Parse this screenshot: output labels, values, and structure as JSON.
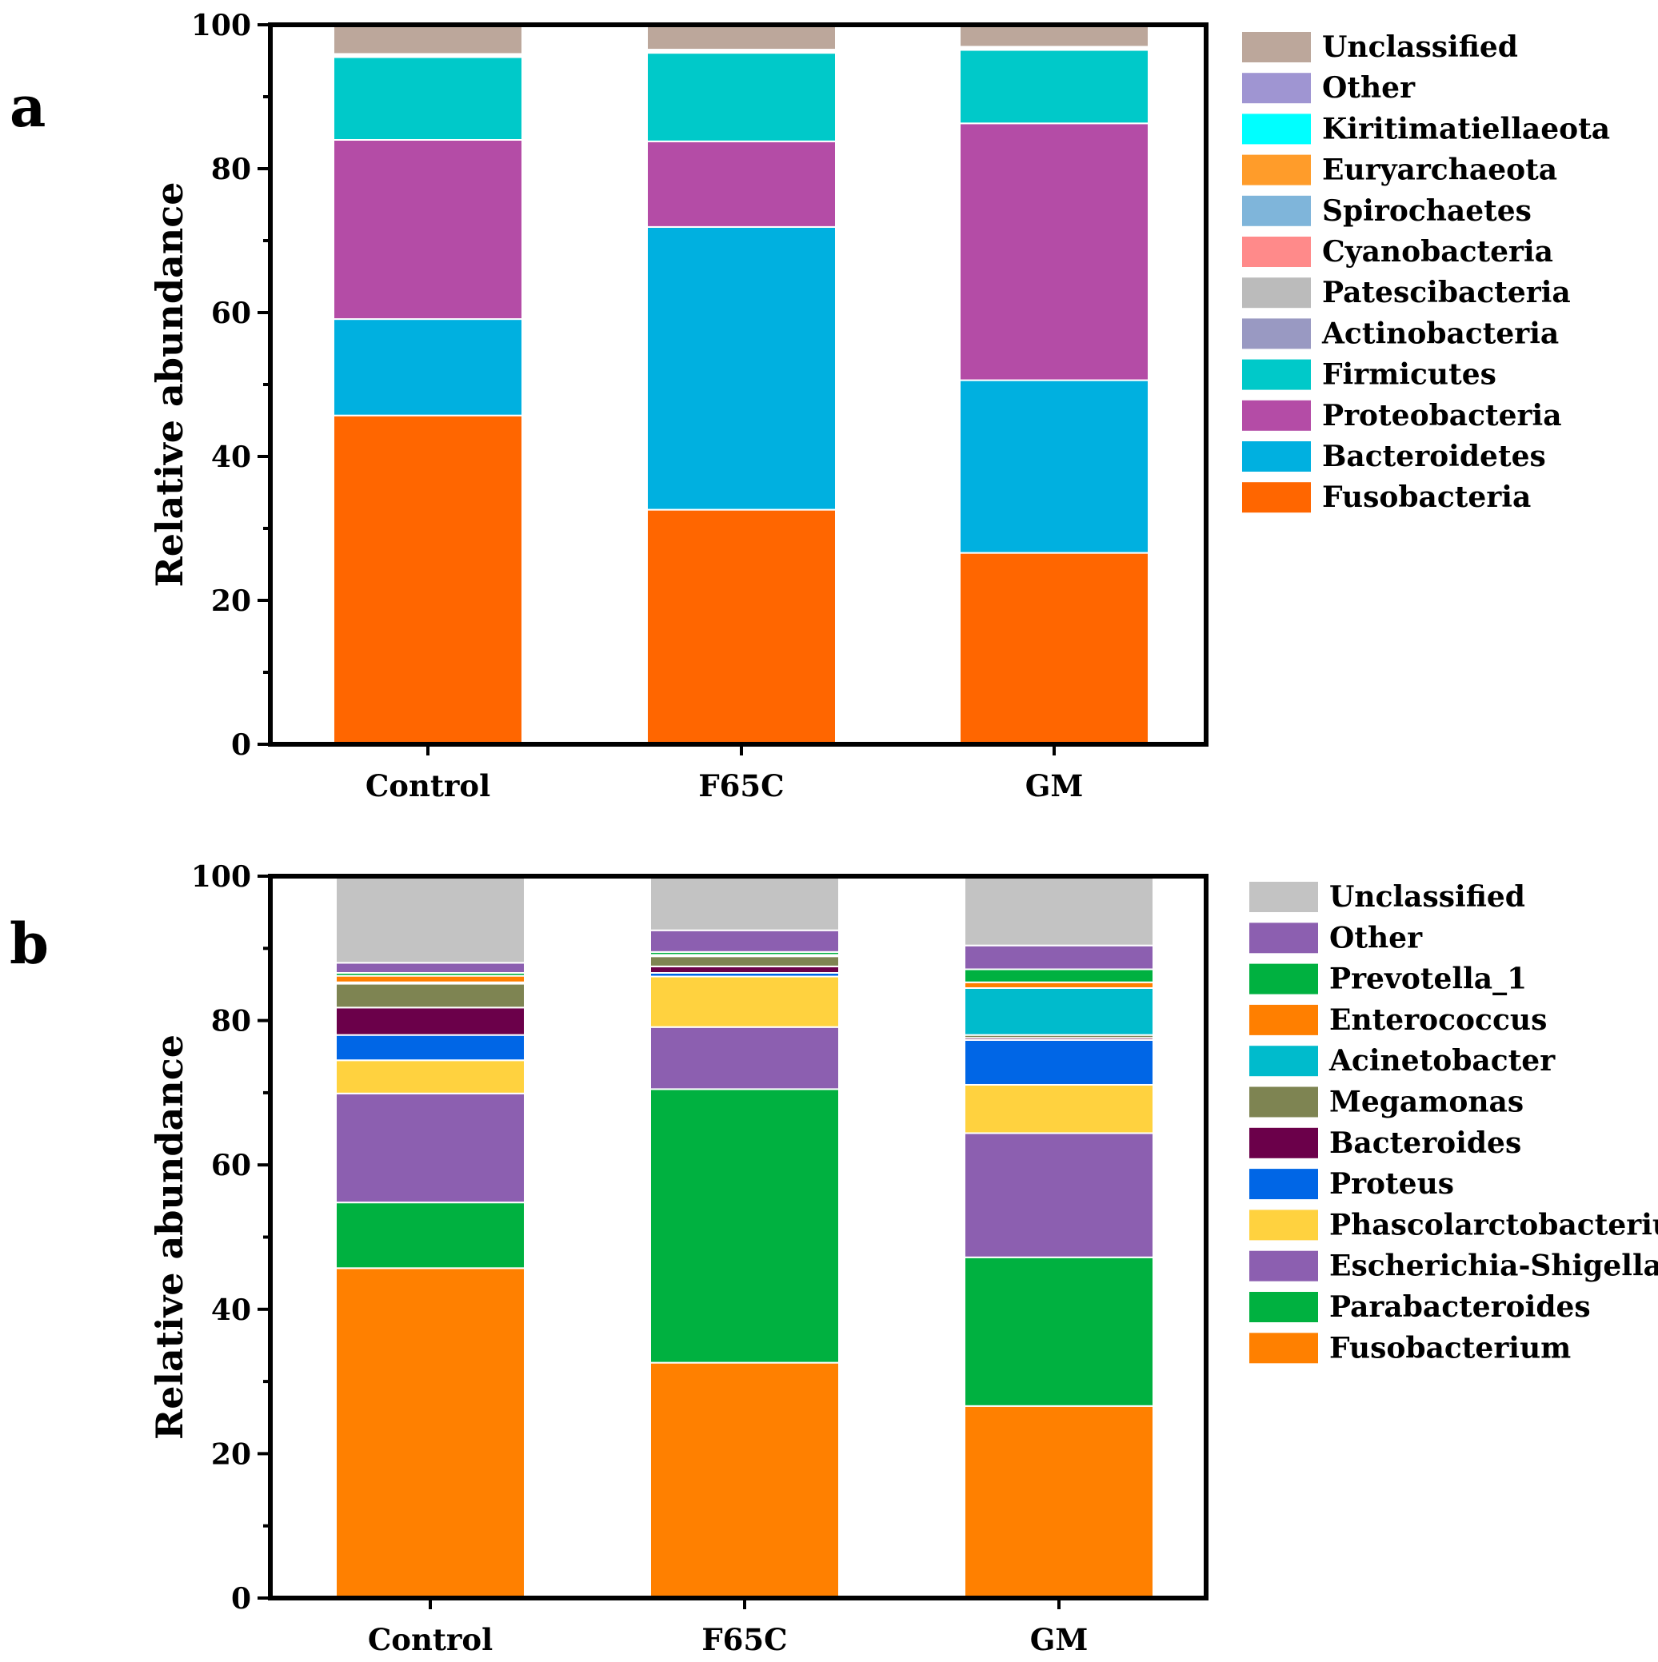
{
  "chart_data": [
    {
      "panel": "a",
      "type": "bar",
      "stacked": true,
      "title": "",
      "xlabel": "",
      "ylabel": "Relative abundance",
      "ylim": [
        0,
        100
      ],
      "yticks": [
        "0",
        "20",
        "40",
        "60",
        "80",
        "100"
      ],
      "categories": [
        "Control",
        "F65C",
        "GM"
      ],
      "series": [
        {
          "name": "Fusobacteria",
          "color": "#FF6600",
          "values": [
            45.7,
            32.6,
            26.6
          ]
        },
        {
          "name": "Bacteroidetes",
          "color": "#00B0E0",
          "values": [
            13.4,
            39.3,
            24.0
          ]
        },
        {
          "name": "Proteobacteria",
          "color": "#B44CA6",
          "values": [
            24.9,
            11.9,
            35.7
          ]
        },
        {
          "name": "Firmicutes",
          "color": "#00C9C9",
          "values": [
            11.5,
            12.3,
            10.2
          ]
        },
        {
          "name": "Actinobacteria",
          "color": "#9999C2",
          "values": [
            0.1,
            0.1,
            0.1
          ]
        },
        {
          "name": "Patescibacteria",
          "color": "#BBBBBB",
          "values": [
            0.05,
            0.05,
            0.05
          ]
        },
        {
          "name": "Cyanobacteria",
          "color": "#FF8A8A",
          "values": [
            0.05,
            0.05,
            0.05
          ]
        },
        {
          "name": "Spirochaetes",
          "color": "#7FB5DA",
          "values": [
            0.05,
            0.05,
            0.05
          ]
        },
        {
          "name": "Euryarchaeota",
          "color": "#FF9C2A",
          "values": [
            0.05,
            0.05,
            0.05
          ]
        },
        {
          "name": "Kiritimatiellaeota",
          "color": "#00FFFF",
          "values": [
            0.05,
            0.05,
            0.05
          ]
        },
        {
          "name": "Other",
          "color": "#9F95D2",
          "values": [
            0.1,
            0.1,
            0.1
          ]
        },
        {
          "name": "Unclassified",
          "color": "#BCA79B",
          "values": [
            4.0,
            3.4,
            3.0
          ]
        }
      ]
    },
    {
      "panel": "b",
      "type": "bar",
      "stacked": true,
      "title": "",
      "xlabel": "",
      "ylabel": "Relative abundance",
      "ylim": [
        0,
        100
      ],
      "yticks": [
        "0",
        "20",
        "40",
        "60",
        "80",
        "100"
      ],
      "categories": [
        "Control",
        "F65C",
        "GM"
      ],
      "series": [
        {
          "name": "Fusobacterium",
          "color": "#FF8000",
          "values": [
            45.7,
            32.6,
            26.6
          ]
        },
        {
          "name": "Parabacteroides",
          "color": "#00B140",
          "values": [
            9.1,
            37.9,
            20.6
          ]
        },
        {
          "name": "Escherichia-Shigella",
          "color": "#8C5FB0",
          "values": [
            15.1,
            8.6,
            17.2
          ]
        },
        {
          "name": "Phascolarctobacterium",
          "color": "#FFD23F",
          "values": [
            4.6,
            7.0,
            6.7
          ]
        },
        {
          "name": "Proteus",
          "color": "#0066E6",
          "values": [
            3.5,
            0.5,
            6.2
          ]
        },
        {
          "name": "Bacteroides",
          "color": "#6B004A",
          "values": [
            3.8,
            0.9,
            0.3
          ]
        },
        {
          "name": "Megamonas",
          "color": "#7E8452",
          "values": [
            3.3,
            1.4,
            0.4
          ]
        },
        {
          "name": "Acinetobacter",
          "color": "#00BBCC",
          "values": [
            0.2,
            0.1,
            6.5
          ]
        },
        {
          "name": "Enterococcus",
          "color": "#FF7F00",
          "values": [
            0.9,
            0.1,
            0.8
          ]
        },
        {
          "name": "Prevotella_1",
          "color": "#00B140",
          "values": [
            0.4,
            0.4,
            1.8
          ]
        },
        {
          "name": "Other",
          "color": "#8C5FB0",
          "values": [
            1.4,
            3.0,
            3.3
          ]
        },
        {
          "name": "Unclassified",
          "color": "#C3C3C3",
          "values": [
            12.0,
            7.5,
            9.6
          ]
        }
      ]
    }
  ],
  "panel_letters": [
    "a",
    "b"
  ]
}
